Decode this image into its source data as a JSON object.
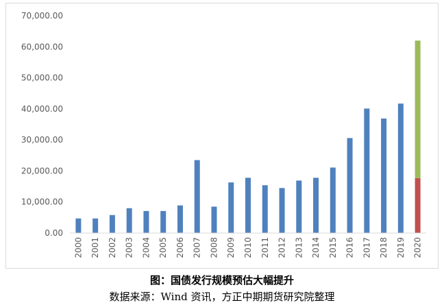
{
  "chart_data": {
    "type": "bar",
    "stacked": true,
    "title": "",
    "xlabel": "",
    "ylabel": "",
    "ylim": [
      0,
      70000
    ],
    "yticks": [
      "0.00",
      "10,000.00",
      "20,000.00",
      "30,000.00",
      "40,000.00",
      "50,000.00",
      "60,000.00",
      "70,000.00"
    ],
    "ytick_values": [
      0,
      10000,
      20000,
      30000,
      40000,
      50000,
      60000,
      70000
    ],
    "grid": false,
    "legend": "none",
    "categories": [
      "2000",
      "2001",
      "2002",
      "2003",
      "2004",
      "2005",
      "2006",
      "2007",
      "2008",
      "2009",
      "2010",
      "2011",
      "2012",
      "2013",
      "2014",
      "2015",
      "2016",
      "2017",
      "2018",
      "2019",
      "2020"
    ],
    "series": [
      {
        "color": "#4f81bd",
        "values": [
          4700,
          4700,
          5800,
          8000,
          7100,
          7100,
          8900,
          23500,
          8500,
          16300,
          17800,
          15400,
          14500,
          16900,
          17800,
          21100,
          30600,
          40100,
          36900,
          41700,
          null
        ]
      },
      {
        "color": "#c0504d",
        "values": [
          null,
          null,
          null,
          null,
          null,
          null,
          null,
          null,
          null,
          null,
          null,
          null,
          null,
          null,
          null,
          null,
          null,
          null,
          null,
          null,
          17700
        ]
      },
      {
        "color": "#9bbb59",
        "values": [
          null,
          null,
          null,
          null,
          null,
          null,
          null,
          null,
          null,
          null,
          null,
          null,
          null,
          null,
          null,
          null,
          null,
          null,
          null,
          null,
          44300
        ]
      }
    ]
  },
  "caption": {
    "title": "图：国债发行规模预估大幅提升",
    "source": "数据来源：Wind 资讯，方正中期期货研究院整理"
  }
}
